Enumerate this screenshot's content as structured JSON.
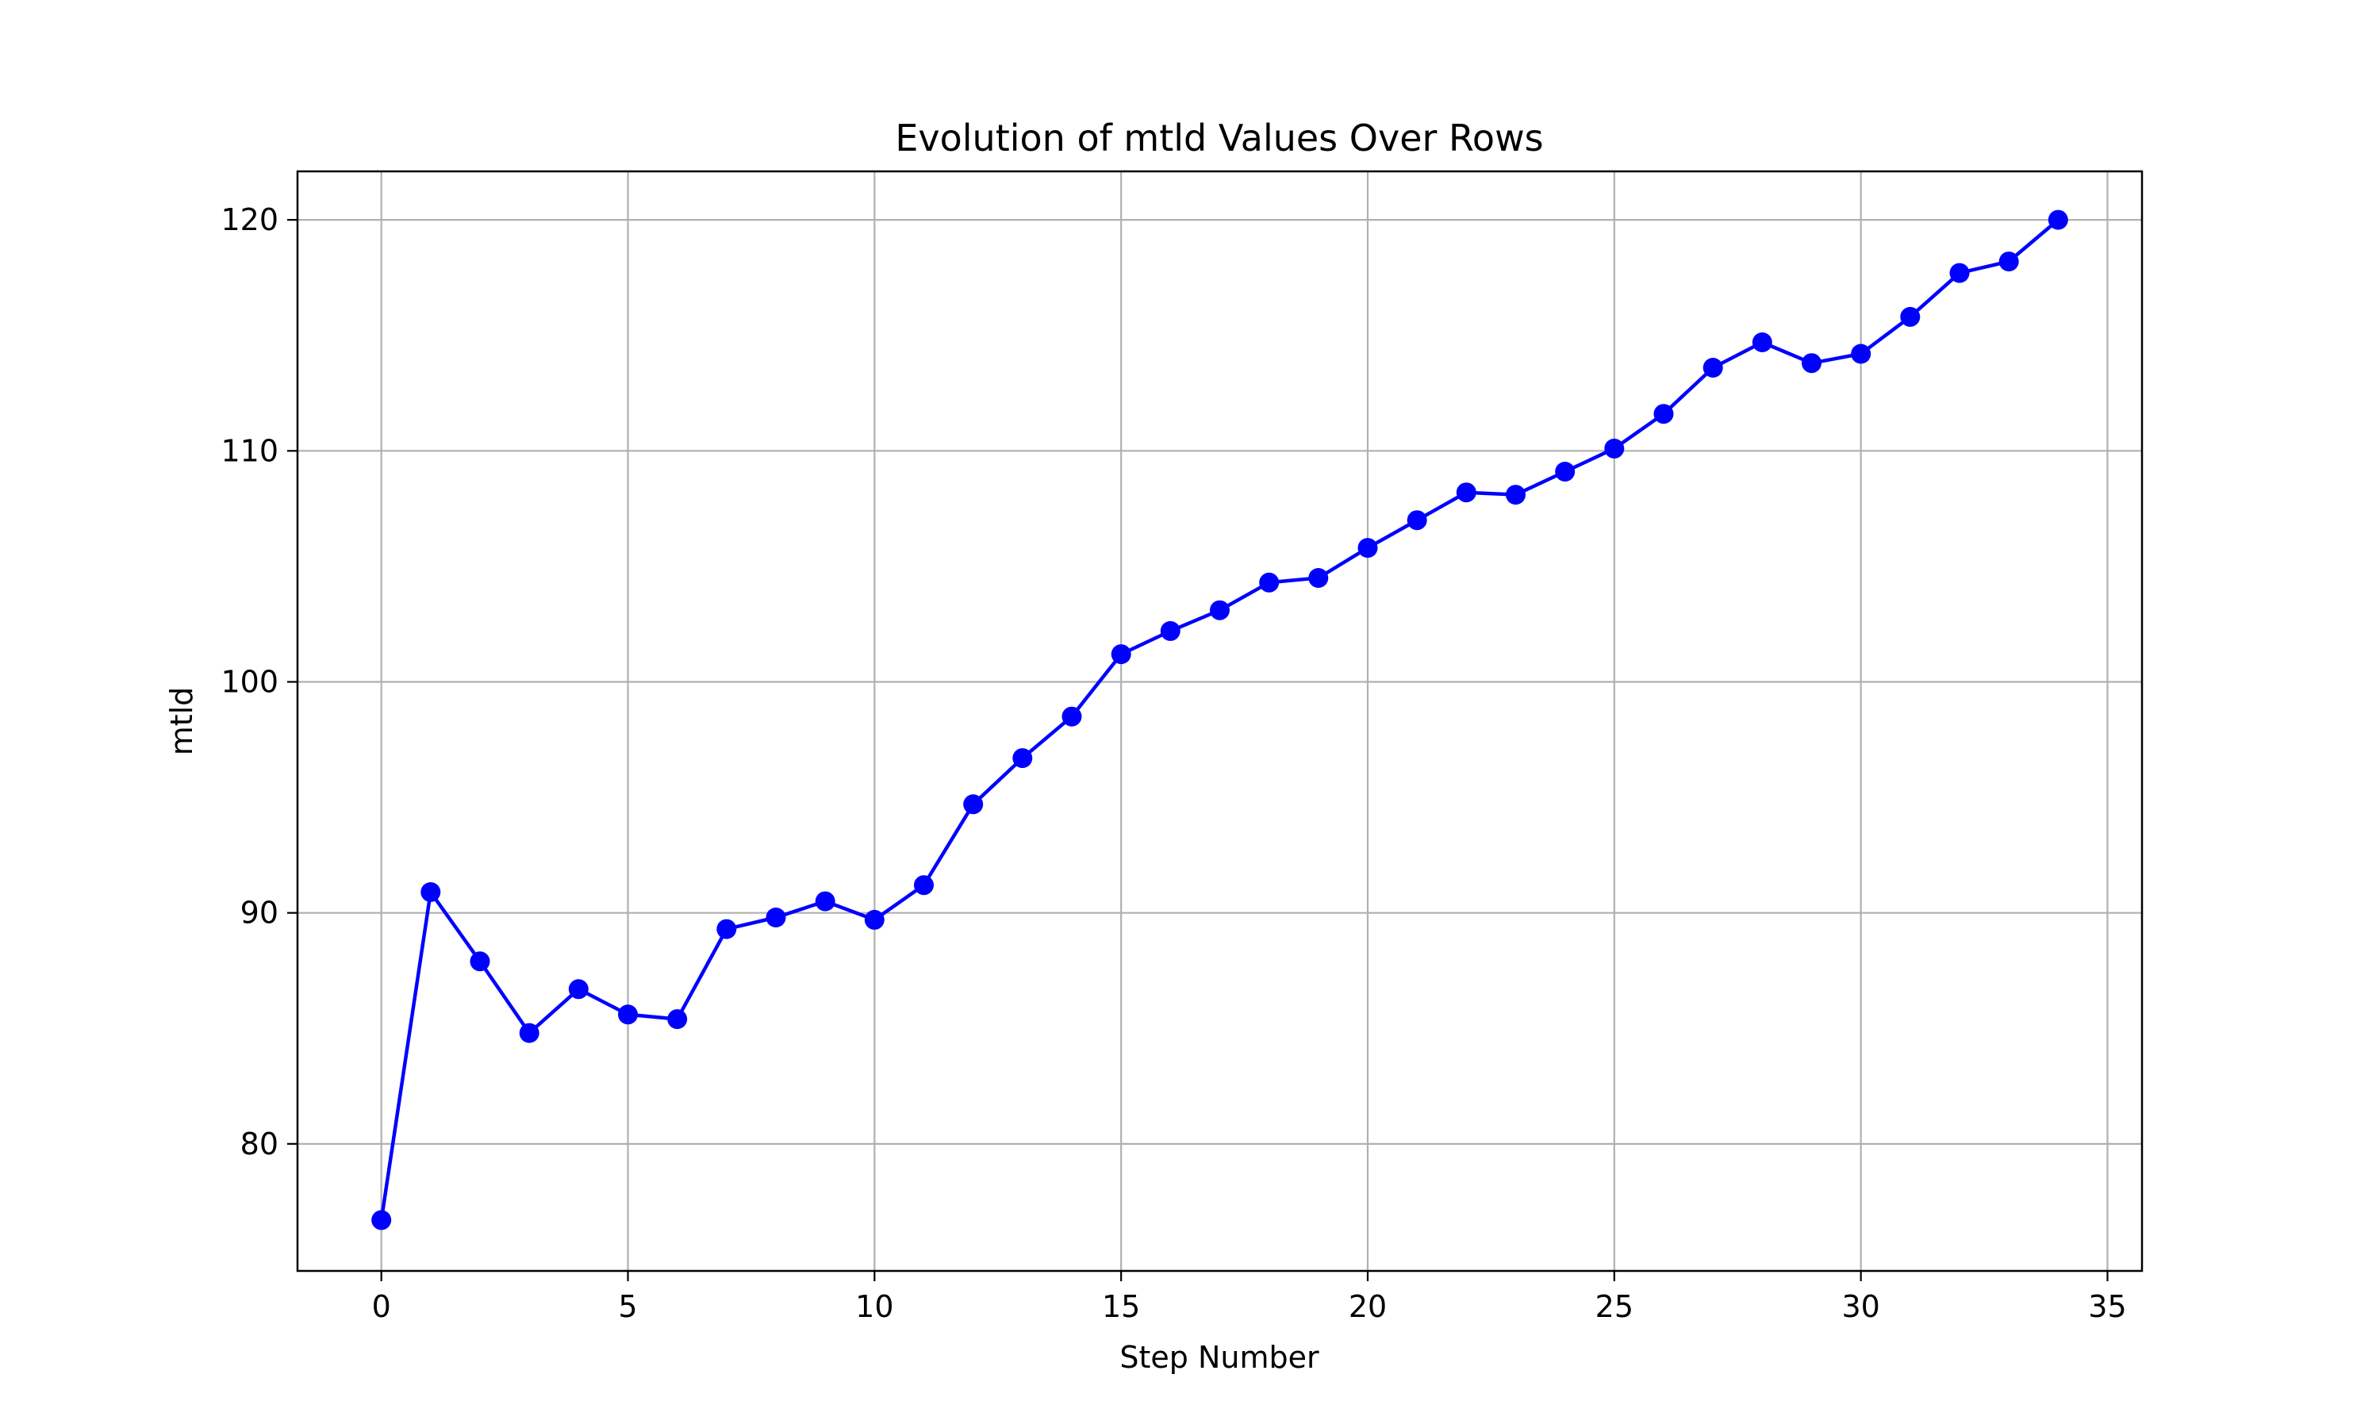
{
  "chart_data": {
    "type": "line",
    "title": "Evolution of mtld Values Over Rows",
    "xlabel": "Step Number",
    "ylabel": "mtld",
    "xlim": [
      -1.7,
      35.7
    ],
    "ylim": [
      74.5,
      122.1
    ],
    "xticks": [
      0,
      5,
      10,
      15,
      20,
      25,
      30,
      35
    ],
    "yticks": [
      80,
      90,
      100,
      110,
      120
    ],
    "grid": true,
    "legend": "none",
    "colors": {
      "series": "#0000ff",
      "grid": "#b0b0b0",
      "axes": "#000000"
    },
    "series": [
      {
        "marker": "circle",
        "x": [
          0,
          1,
          2,
          3,
          4,
          5,
          6,
          7,
          8,
          9,
          10,
          11,
          12,
          13,
          14,
          15,
          16,
          17,
          18,
          19,
          20,
          21,
          22,
          23,
          24,
          25,
          26,
          27,
          28,
          29,
          30,
          31,
          32,
          33,
          34
        ],
        "values": [
          76.7,
          90.9,
          87.9,
          84.8,
          86.7,
          85.6,
          85.4,
          89.3,
          89.8,
          90.5,
          89.7,
          91.2,
          94.7,
          96.7,
          98.5,
          101.2,
          102.2,
          103.1,
          104.3,
          104.5,
          105.8,
          107.0,
          108.2,
          108.1,
          109.1,
          110.1,
          111.6,
          113.6,
          114.7,
          113.8,
          114.2,
          115.8,
          117.7,
          118.2,
          120.0
        ]
      }
    ]
  }
}
